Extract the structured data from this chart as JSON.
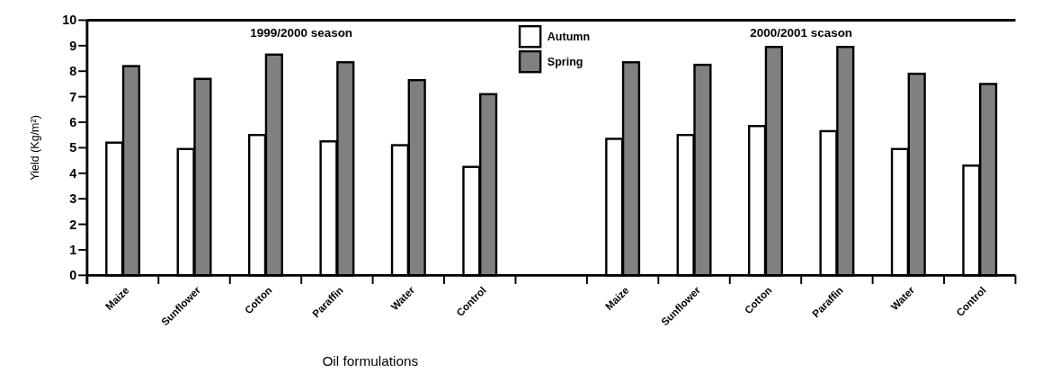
{
  "chart_data": {
    "type": "bar",
    "xlabel": "Oil formulations",
    "ylabel": "Yield (Kg/m²)",
    "categories": [
      "Maize",
      "Sunflower",
      "Cotton",
      "Paraffin",
      "Water",
      "Control",
      null,
      "Maize",
      "Sunflower",
      "Cotton",
      "Paraffin",
      "Water",
      "Control"
    ],
    "series": [
      {
        "name": "Autumn",
        "color": "#ffffff",
        "values": [
          5.2,
          4.95,
          5.5,
          5.25,
          5.1,
          4.25,
          null,
          5.35,
          5.5,
          5.85,
          5.65,
          4.95,
          4.3
        ]
      },
      {
        "name": "Spring",
        "color": "#808080",
        "values": [
          8.2,
          7.7,
          8.65,
          8.35,
          7.65,
          7.1,
          null,
          8.35,
          8.25,
          8.95,
          8.95,
          7.9,
          7.5
        ]
      }
    ],
    "annotations": [
      "1999/2000 season",
      "2000/2001 scason"
    ],
    "ylim": [
      0,
      10
    ],
    "yticks": [
      0,
      1,
      2,
      3,
      4,
      5,
      6,
      7,
      8,
      9,
      10
    ],
    "grid": false,
    "legend": "top"
  }
}
